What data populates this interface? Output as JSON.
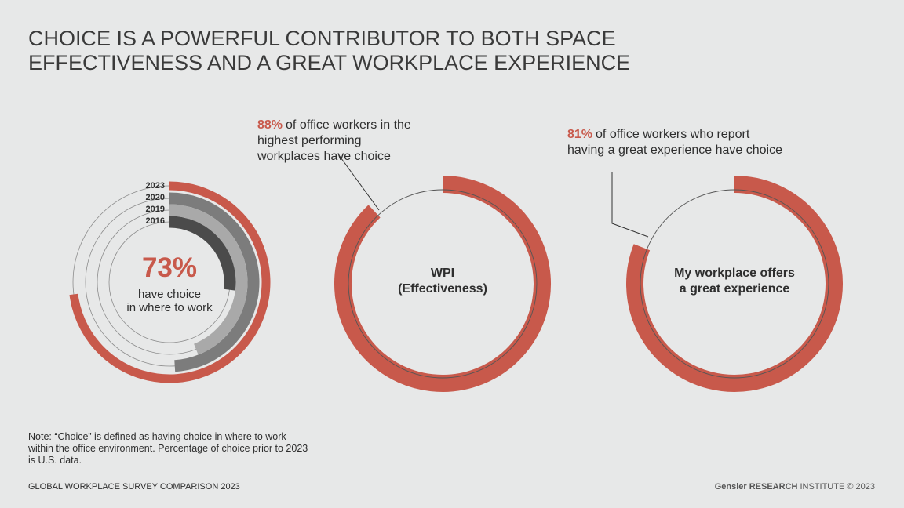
{
  "title": [
    "CHOICE IS A POWERFUL CONTRIBUTOR TO BOTH SPACE",
    "EFFECTIVENESS AND A GREAT WORKPLACE EXPERIENCE"
  ],
  "chart_data": [
    {
      "type": "radial",
      "categories": [
        "2023",
        "2020",
        "2019",
        "2016"
      ],
      "values": [
        73,
        49,
        44,
        27
      ],
      "value_labels": [
        "73%",
        null,
        null,
        null
      ],
      "colors": [
        "#c8594b",
        "#7c7c7c",
        "#a9a9a9",
        "#4b4b4b"
      ],
      "ylim": [
        0,
        100
      ],
      "caption": [
        "have choice",
        "in where to work"
      ]
    },
    {
      "type": "donut",
      "values": [
        88
      ],
      "value_labels": [
        "88%"
      ],
      "color": "#c8594b",
      "ylim": [
        0,
        100
      ],
      "annotation": [
        "of office workers in the",
        "highest performing",
        "workplaces have choice"
      ],
      "caption": [
        "WPI",
        "(Effectiveness)"
      ]
    },
    {
      "type": "donut",
      "values": [
        81
      ],
      "value_labels": [
        "81%"
      ],
      "color": "#c8594b",
      "ylim": [
        0,
        100
      ],
      "annotation": [
        "of office workers who report",
        "having a great experience have choice"
      ],
      "caption": [
        "My workplace offers",
        "a great experience"
      ]
    }
  ],
  "note": [
    "Note: “Choice” is defined as having choice in where to work",
    "within the office environment. Percentage of choice prior to 2023",
    "is U.S. data."
  ],
  "footer": {
    "left": "GLOBAL WORKPLACE SURVEY COMPARISON 2023",
    "right": [
      "Gensler RESEARCH",
      "INSTITUTE © 2023"
    ]
  }
}
